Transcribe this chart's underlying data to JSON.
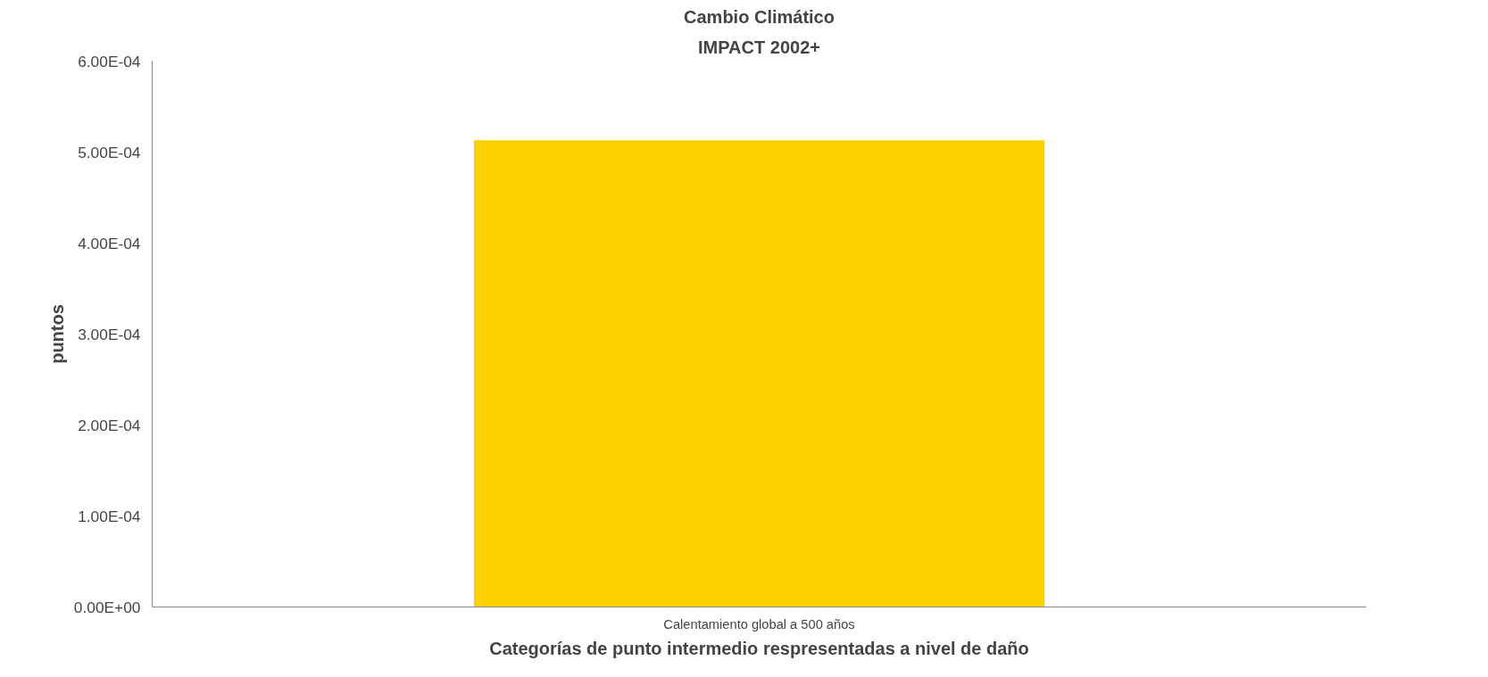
{
  "chart_data": {
    "type": "bar",
    "title": "Cambio Climático",
    "subtitle": "IMPACT 2002+",
    "xlabel": "Categorías de punto intermedio respresentadas a nivel de daño",
    "ylabel": "puntos",
    "categories": [
      "Calentamiento global a 500 años"
    ],
    "series": [
      {
        "color": "#ffd000",
        "values": [
          0.000513
        ]
      }
    ],
    "ylim": [
      0,
      0.0006
    ],
    "yticks": [
      {
        "value": 0,
        "label": "0.00E+00"
      },
      {
        "value": 0.0001,
        "label": "1.00E-04"
      },
      {
        "value": 0.0002,
        "label": "2.00E-04"
      },
      {
        "value": 0.0003,
        "label": "3.00E-04"
      },
      {
        "value": 0.0004,
        "label": "4.00E-04"
      },
      {
        "value": 0.0005,
        "label": "5.00E-04"
      },
      {
        "value": 0.0006,
        "label": "6.00E-04"
      }
    ],
    "grid": false
  }
}
